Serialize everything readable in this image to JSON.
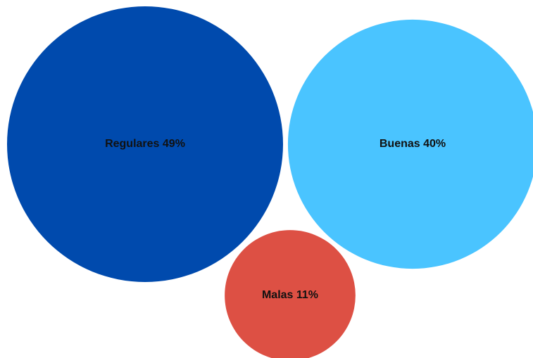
{
  "chart_data": {
    "type": "bubble",
    "title": "",
    "series": [
      {
        "label": "Regulares",
        "value": 49,
        "display": "Regulares 49%",
        "color": "#004AAD"
      },
      {
        "label": "Buenas",
        "value": 40,
        "display": "Buenas 40%",
        "color": "#4AC4FF"
      },
      {
        "label": "Malas",
        "value": 11,
        "display": "Malas 11%",
        "color": "#DD5044"
      }
    ],
    "legend": "none",
    "grid": false
  }
}
